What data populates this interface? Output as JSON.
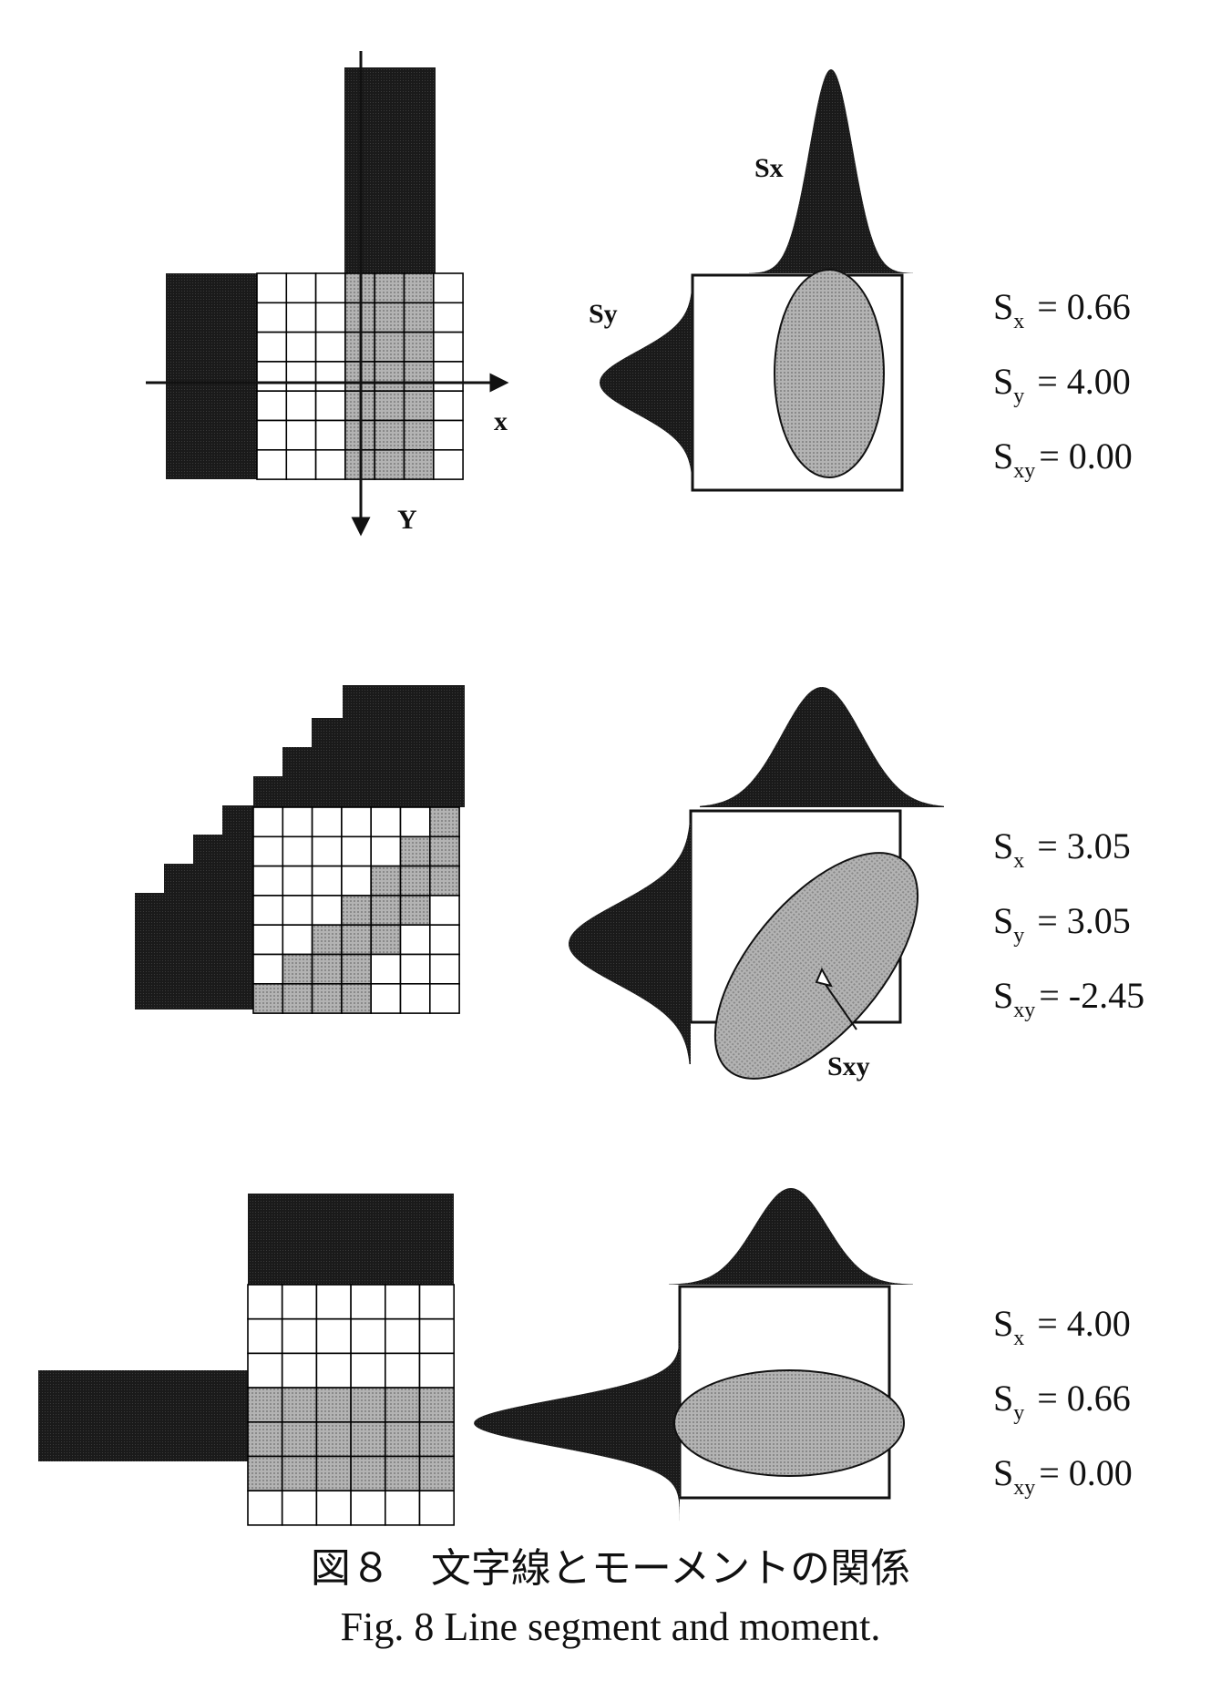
{
  "panels": [
    {
      "axis_x_label": "x",
      "axis_y_label": "Y",
      "sx_label": "Sx",
      "sy_label": "Sy",
      "stats": [
        {
          "sym": "S",
          "sub": "x",
          "val": "= 0.66"
        },
        {
          "sym": "S",
          "sub": "y",
          "val": "= 4.00"
        },
        {
          "sym": "S",
          "sub": "xy",
          "val": "= 0.00"
        }
      ]
    },
    {
      "sxy_label": "Sxy",
      "stats": [
        {
          "sym": "S",
          "sub": "x",
          "val": "= 3.05"
        },
        {
          "sym": "S",
          "sub": "y",
          "val": "= 3.05"
        },
        {
          "sym": "S",
          "sub": "xy",
          "val": "= -2.45"
        }
      ]
    },
    {
      "stats": [
        {
          "sym": "S",
          "sub": "x",
          "val": "= 4.00"
        },
        {
          "sym": "S",
          "sub": "y",
          "val": "= 0.66"
        },
        {
          "sym": "S",
          "sub": "xy",
          "val": "= 0.00"
        }
      ]
    }
  ],
  "caption": {
    "jp": "図８　文字線とモーメントの関係",
    "en": "Fig. 8  Line segment and moment."
  },
  "colors": {
    "dark": "#1c1c1c",
    "gray": "#a9a9a9",
    "grid": "#000000"
  }
}
